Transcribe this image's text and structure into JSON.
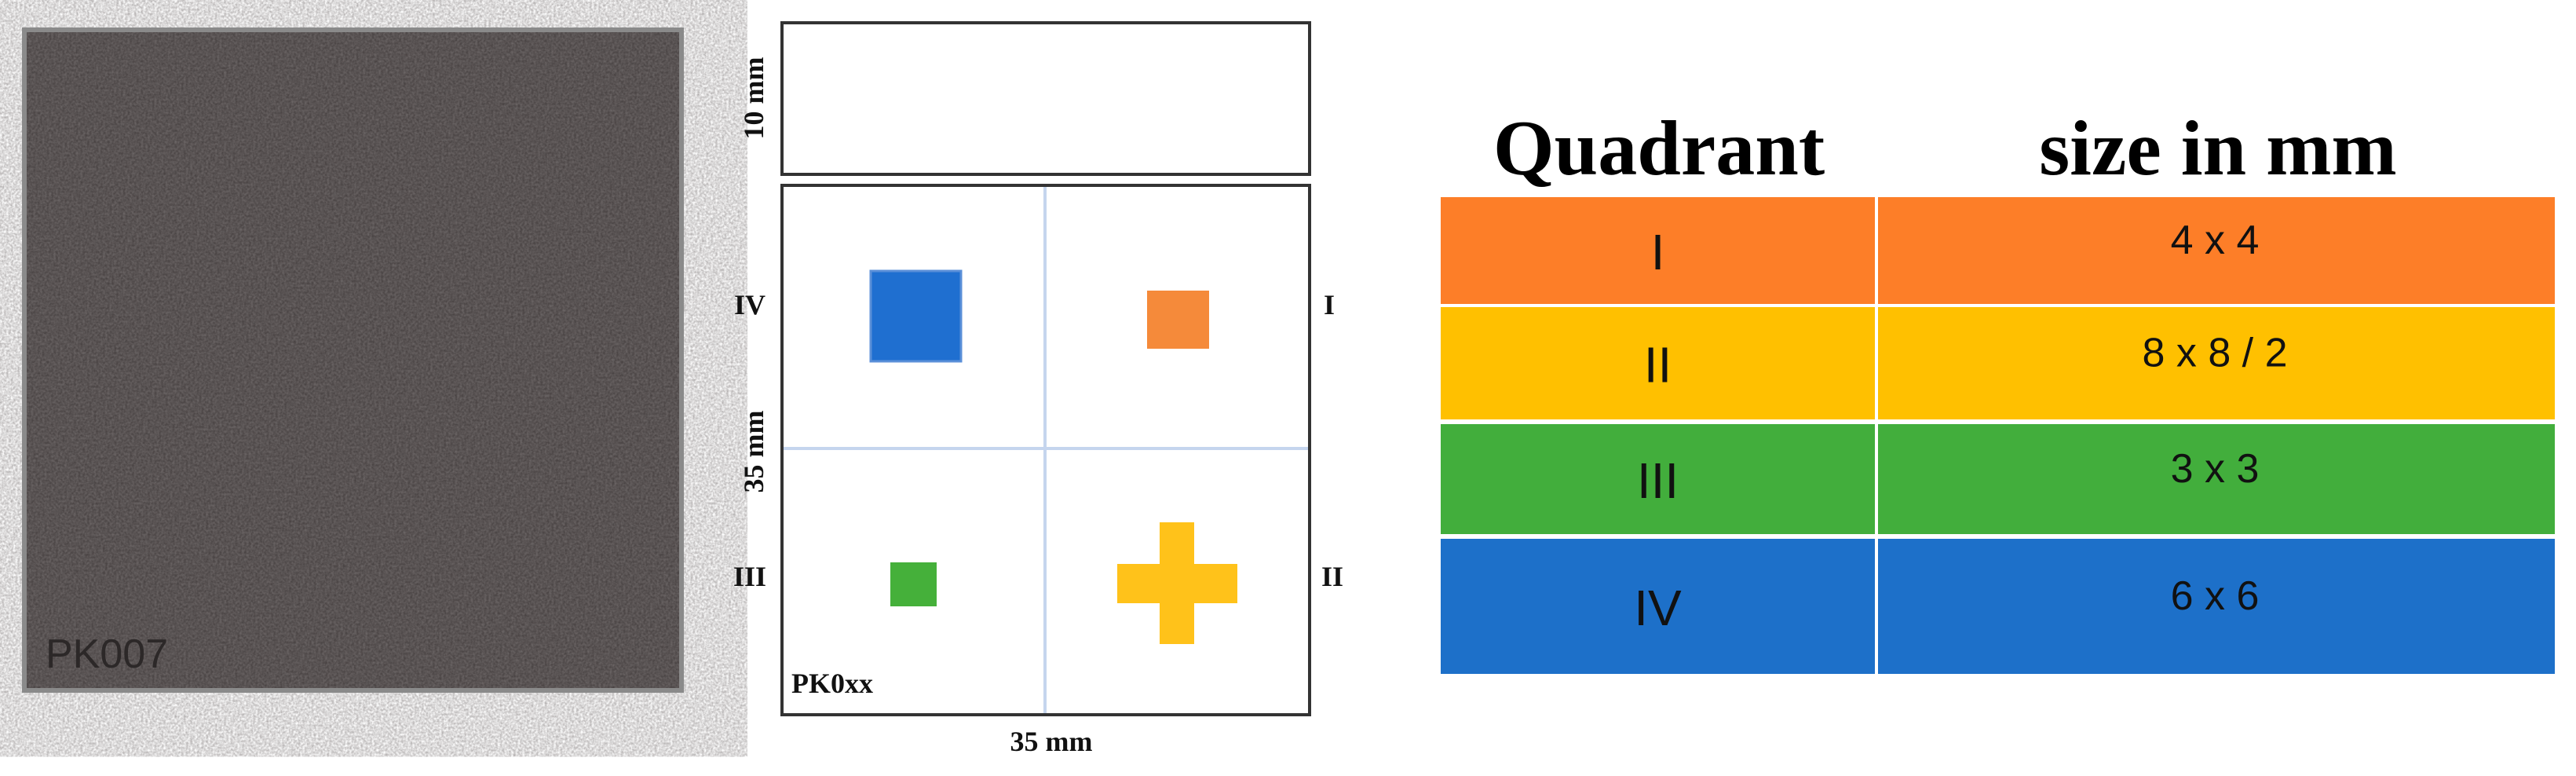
{
  "photo": {
    "label": "PK007"
  },
  "diagram": {
    "top_height": "10 mm",
    "side_height": "35 mm",
    "bottom_width": "35 mm",
    "sample_label": "PK0xx",
    "quadrant_labels": {
      "q1": "I",
      "q2": "II",
      "q3": "III",
      "q4": "IV"
    }
  },
  "table": {
    "header": [
      "Quadrant",
      "size in mm"
    ],
    "rows": [
      [
        "I",
        "4 x 4"
      ],
      [
        "II",
        "8 x 8 / 2"
      ],
      [
        "III",
        "3 x 3"
      ],
      [
        "IV",
        "6 x 6"
      ]
    ]
  }
}
